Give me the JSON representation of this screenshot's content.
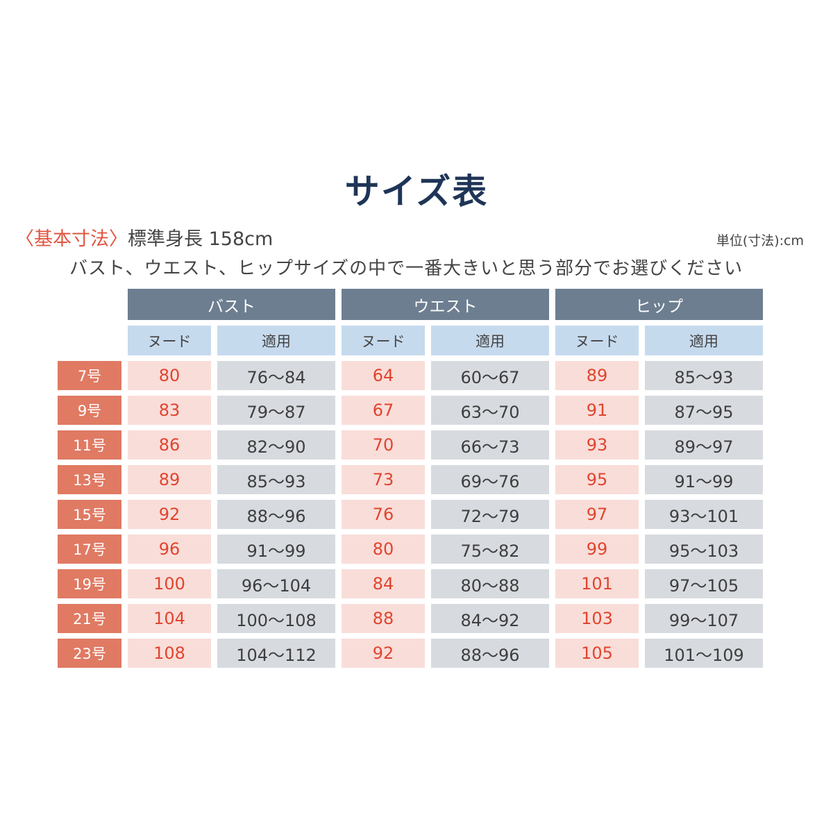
{
  "title": "サイズ表",
  "basic_tag": "〈基本寸法〉",
  "basic_text": "標準身長 158cm",
  "unit": "単位(寸法):cm",
  "note": "バスト、ウエスト、ヒップサイズの中で一番大きいと思う部分でお選びください",
  "groups": [
    "バスト",
    "ウエスト",
    "ヒップ"
  ],
  "sub_headers": [
    "ヌード",
    "適用",
    "ヌード",
    "適用",
    "ヌード",
    "適用"
  ],
  "rows": [
    {
      "size": "7号",
      "values": [
        "80",
        "76〜84",
        "64",
        "60〜67",
        "89",
        "85〜93"
      ]
    },
    {
      "size": "9号",
      "values": [
        "83",
        "79〜87",
        "67",
        "63〜70",
        "91",
        "87〜95"
      ]
    },
    {
      "size": "11号",
      "values": [
        "86",
        "82〜90",
        "70",
        "66〜73",
        "93",
        "89〜97"
      ]
    },
    {
      "size": "13号",
      "values": [
        "89",
        "85〜93",
        "73",
        "69〜76",
        "95",
        "91〜99"
      ]
    },
    {
      "size": "15号",
      "values": [
        "92",
        "88〜96",
        "76",
        "72〜79",
        "97",
        "93〜101"
      ]
    },
    {
      "size": "17号",
      "values": [
        "96",
        "91〜99",
        "80",
        "75〜82",
        "99",
        "95〜103"
      ]
    },
    {
      "size": "19号",
      "values": [
        "100",
        "96〜104",
        "84",
        "80〜88",
        "101",
        "97〜105"
      ]
    },
    {
      "size": "21号",
      "values": [
        "104",
        "100〜108",
        "88",
        "84〜92",
        "103",
        "99〜107"
      ]
    },
    {
      "size": "23号",
      "values": [
        "108",
        "104〜112",
        "92",
        "88〜96",
        "105",
        "101〜109"
      ]
    }
  ]
}
